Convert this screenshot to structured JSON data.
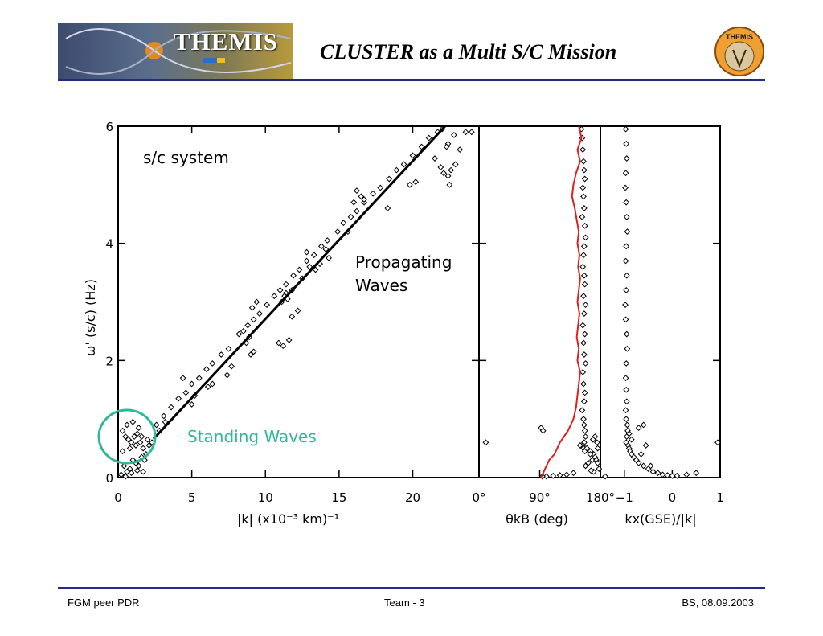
{
  "header": {
    "logo_text": "THEMIS",
    "title": "CLUSTER as a Multi S/C Mission",
    "badge_text": "THEMIS"
  },
  "footer": {
    "left": "FGM peer PDR",
    "center": "Team - 3",
    "right": "BS, 08.09.2003"
  },
  "colors": {
    "rule": "#1f2a8a",
    "circle": "#2fb89a",
    "standing_text": "#2fb89a",
    "red_curve": "#e0201f",
    "markers": "#000000"
  },
  "chart_data": [
    {
      "type": "scatter",
      "panel": "main",
      "xlabel": "|k| (x10⁻³ km)⁻¹",
      "ylabel": "ω' (s/c) (Hz)",
      "xlim": [
        0,
        24.5
      ],
      "ylim": [
        0,
        6
      ],
      "xticks": [
        0,
        5,
        10,
        15,
        20
      ],
      "yticks": [
        0,
        2,
        4,
        6
      ],
      "fit_line": {
        "x": [
          2.4,
          22.2
        ],
        "y": [
          0.66,
          6.0
        ]
      },
      "annotations": [
        "s/c system",
        "Propagating",
        "Waves",
        "Standing Waves"
      ],
      "points": {
        "x": [
          0.3,
          0.5,
          0.7,
          0.9,
          1.1,
          1.3,
          1.5,
          1.7,
          1.9,
          2.1,
          0.4,
          0.6,
          0.8,
          1.0,
          1.2,
          1.4,
          1.6,
          1.8,
          0.2,
          0.5,
          0.9,
          1.3,
          1.7,
          0.6,
          1.0,
          1.4,
          0.3,
          0.8,
          1.2,
          1.6,
          2.0,
          2.3,
          2.6,
          3.1,
          3.6,
          4.1,
          4.6,
          5.0,
          5.5,
          6.0,
          6.4,
          7.0,
          7.5,
          8.2,
          8.8,
          9.2,
          9.6,
          10.1,
          10.6,
          11.0,
          11.4,
          11.9,
          12.3,
          12.8,
          13.3,
          13.8,
          14.2,
          14.9,
          15.3,
          15.8,
          16.2,
          16.7,
          17.3,
          17.8,
          18.4,
          18.9,
          19.4,
          20.0,
          20.6,
          21.1,
          21.7,
          22.0,
          22.4,
          22.8,
          23.2,
          23.6,
          8.5,
          8.9,
          9.1,
          9.4,
          10.9,
          11.2,
          11.6,
          11.4,
          11.8,
          11.1,
          11.3,
          11.5,
          13.0,
          13.4,
          12.5,
          16.2,
          16.5,
          16.0,
          18.3,
          19.8,
          20.2,
          21.5,
          21.9,
          22.1,
          22.5,
          22.3,
          16.7,
          15.6,
          14.1,
          12.8,
          9.2,
          9.0,
          8.7,
          5.0,
          5.2,
          4.4,
          3.2,
          2.8,
          7.4,
          7.7,
          6.1,
          6.4,
          13.7,
          14.3,
          12.2,
          11.8,
          22.6,
          22.4,
          22.9,
          24.0
        ],
        "y": [
          0.8,
          0.7,
          0.65,
          0.6,
          0.7,
          0.75,
          0.6,
          0.5,
          0.4,
          0.55,
          0.2,
          0.1,
          0.15,
          0.3,
          0.25,
          0.2,
          0.35,
          0.3,
          0.05,
          0.02,
          0.08,
          0.12,
          0.1,
          0.9,
          0.95,
          0.85,
          0.45,
          0.5,
          0.55,
          0.7,
          0.65,
          0.6,
          0.9,
          1.05,
          1.2,
          1.35,
          1.45,
          1.6,
          1.7,
          1.85,
          1.95,
          2.1,
          2.2,
          2.45,
          2.6,
          2.7,
          2.8,
          2.95,
          3.1,
          3.2,
          3.3,
          3.45,
          3.55,
          3.7,
          3.8,
          3.95,
          4.05,
          4.2,
          4.35,
          4.45,
          4.55,
          4.7,
          4.85,
          4.95,
          5.1,
          5.25,
          5.35,
          5.5,
          5.65,
          5.8,
          5.9,
          5.95,
          5.7,
          5.85,
          5.6,
          5.9,
          2.5,
          2.4,
          2.9,
          3.0,
          2.3,
          2.25,
          2.35,
          3.15,
          3.2,
          3.0,
          3.1,
          3.05,
          3.6,
          3.55,
          3.4,
          4.9,
          4.8,
          4.7,
          4.6,
          5.0,
          5.05,
          5.45,
          5.3,
          5.2,
          5.0,
          5.65,
          4.75,
          4.2,
          3.9,
          3.85,
          2.15,
          2.1,
          2.3,
          1.25,
          1.4,
          1.7,
          0.95,
          0.8,
          1.75,
          1.9,
          1.55,
          1.6,
          3.65,
          3.75,
          2.85,
          2.75,
          5.25,
          5.15,
          5.35,
          5.9
        ]
      }
    },
    {
      "type": "scatter",
      "panel": "theta",
      "xlabel": "θkB (deg)",
      "xlim": [
        0,
        180
      ],
      "ylim": [
        0,
        6
      ],
      "xticks": [
        "0°",
        "90°",
        "180°"
      ],
      "red_curve": {
        "x": [
          148,
          152,
          146,
          150,
          144,
          140,
          138,
          142,
          145,
          148,
          146,
          149,
          147,
          150,
          148,
          146,
          149,
          147,
          145,
          148,
          146,
          150,
          148,
          146,
          144,
          140,
          132,
          120,
          112,
          104,
          100,
          96,
          92
        ],
        "y": [
          6.0,
          5.8,
          5.6,
          5.4,
          5.2,
          5.0,
          4.8,
          4.6,
          4.4,
          4.2,
          4.0,
          3.8,
          3.6,
          3.4,
          3.2,
          3.0,
          2.8,
          2.6,
          2.4,
          2.2,
          2.0,
          1.8,
          1.6,
          1.4,
          1.2,
          1.0,
          0.8,
          0.6,
          0.4,
          0.3,
          0.2,
          0.1,
          0.0
        ]
      },
      "points": {
        "x": [
          152,
          153,
          154,
          155,
          156,
          157,
          154,
          155,
          156,
          153,
          157,
          158,
          156,
          155,
          154,
          156,
          157,
          155,
          158,
          156,
          154,
          157,
          155,
          156,
          158,
          154,
          155,
          157,
          156,
          153,
          155,
          156,
          157,
          158,
          156,
          154,
          155,
          157,
          10,
          92,
          95,
          150,
          160,
          165,
          170,
          172,
          168,
          162,
          158,
          174,
          176,
          178,
          170,
          166,
          140,
          130,
          120,
          110,
          100,
          94,
          175,
          172,
          176,
          169,
          165
        ],
        "y": [
          5.95,
          5.8,
          5.6,
          5.4,
          5.25,
          5.1,
          4.95,
          4.8,
          4.6,
          4.45,
          4.3,
          4.1,
          3.95,
          3.8,
          3.6,
          3.45,
          3.3,
          3.1,
          2.95,
          2.8,
          2.6,
          2.45,
          2.3,
          2.1,
          1.95,
          1.8,
          1.6,
          1.45,
          1.3,
          1.15,
          1.0,
          0.9,
          0.8,
          0.7,
          0.6,
          0.55,
          0.5,
          0.45,
          0.6,
          0.85,
          0.8,
          0.55,
          0.5,
          0.45,
          0.4,
          0.35,
          0.3,
          0.25,
          0.2,
          0.3,
          0.25,
          0.15,
          0.1,
          0.12,
          0.08,
          0.05,
          0.04,
          0.03,
          0.02,
          0.02,
          0.6,
          0.7,
          0.5,
          0.65,
          0.4
        ]
      }
    },
    {
      "type": "scatter",
      "panel": "kx",
      "xlabel": "kx(GSE)/|k|",
      "xlim": [
        -1.5,
        1
      ],
      "ylim": [
        0,
        6
      ],
      "xticks": [
        "−1",
        "0",
        "1"
      ],
      "points": {
        "x": [
          -0.97,
          -0.96,
          -0.95,
          -0.97,
          -0.98,
          -0.96,
          -0.95,
          -0.94,
          -0.96,
          -0.97,
          -0.95,
          -0.96,
          -0.98,
          -0.97,
          -0.95,
          -0.94,
          -0.96,
          -0.97,
          -0.96,
          -0.95,
          -0.97,
          -0.96,
          -0.94,
          -0.93,
          -0.95,
          -0.96,
          -0.92,
          -0.9,
          -0.88,
          -0.85,
          -0.8,
          -0.75,
          -0.7,
          -0.6,
          -0.5,
          -0.4,
          -0.3,
          -0.2,
          -0.1,
          0.0,
          0.1,
          0.3,
          0.5,
          -0.9,
          -0.85,
          -0.7,
          -0.6,
          0.95,
          -1.4,
          -0.55,
          -0.45,
          -0.65
        ],
        "y": [
          5.95,
          5.7,
          5.45,
          5.2,
          4.95,
          4.7,
          4.45,
          4.2,
          3.95,
          3.7,
          3.45,
          3.2,
          2.95,
          2.7,
          2.45,
          2.2,
          1.95,
          1.7,
          1.5,
          1.3,
          1.15,
          1.0,
          0.9,
          0.8,
          0.7,
          0.6,
          0.55,
          0.5,
          0.45,
          0.4,
          0.35,
          0.3,
          0.25,
          0.2,
          0.15,
          0.1,
          0.08,
          0.05,
          0.04,
          0.03,
          0.03,
          0.05,
          0.08,
          0.75,
          0.65,
          0.85,
          0.9,
          0.6,
          0.02,
          0.55,
          0.2,
          0.4
        ]
      }
    }
  ]
}
